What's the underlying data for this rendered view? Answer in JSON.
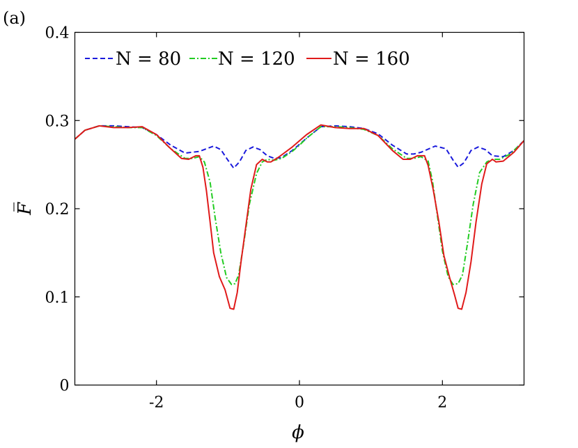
{
  "panel_label": "(a)",
  "chart_data": {
    "type": "line",
    "xlabel": "ϕ",
    "ylabel": "F̅",
    "xlim": [
      -3.14159,
      3.14159
    ],
    "ylim": [
      0,
      0.4
    ],
    "xticks": [
      -2,
      0,
      2
    ],
    "xtick_labels": [
      "-2",
      "0",
      "2"
    ],
    "yticks": [
      0,
      0.1,
      0.2,
      0.3,
      0.4
    ],
    "ytick_labels": [
      "0",
      "0.1",
      "0.2",
      "0.3",
      "0.4"
    ],
    "grid": false,
    "legend_position": "top-left",
    "series": [
      {
        "name": "N = 80",
        "color": "#1a1adc",
        "dash": "dashed",
        "x": [
          -3.14,
          -3.0,
          -2.8,
          -2.6,
          -2.4,
          -2.2,
          -2.0,
          -1.8,
          -1.6,
          -1.4,
          -1.3,
          -1.2,
          -1.1,
          -1.0,
          -0.92,
          -0.84,
          -0.75,
          -0.65,
          -0.55,
          -0.45,
          -0.35,
          -0.25,
          -0.1,
          0.0,
          0.1,
          0.3,
          0.5,
          0.7,
          0.9,
          1.1,
          1.3,
          1.5,
          1.6,
          1.7,
          1.9,
          2.05,
          2.15,
          2.22,
          2.3,
          2.4,
          2.5,
          2.6,
          2.7,
          2.85,
          3.0,
          3.14
        ],
        "y": [
          0.279,
          0.289,
          0.294,
          0.294,
          0.293,
          0.292,
          0.284,
          0.272,
          0.263,
          0.265,
          0.268,
          0.271,
          0.267,
          0.255,
          0.246,
          0.253,
          0.266,
          0.27,
          0.267,
          0.26,
          0.257,
          0.258,
          0.266,
          0.273,
          0.28,
          0.293,
          0.294,
          0.293,
          0.291,
          0.285,
          0.272,
          0.262,
          0.262,
          0.264,
          0.271,
          0.268,
          0.255,
          0.247,
          0.252,
          0.266,
          0.27,
          0.267,
          0.26,
          0.259,
          0.266,
          0.277
        ]
      },
      {
        "name": "N = 120",
        "color": "#22cc22",
        "dash": "dashdot",
        "x": [
          -3.14,
          -3.0,
          -2.8,
          -2.6,
          -2.4,
          -2.2,
          -2.0,
          -1.8,
          -1.6,
          -1.5,
          -1.4,
          -1.33,
          -1.25,
          -1.18,
          -1.1,
          -1.02,
          -0.95,
          -0.9,
          -0.85,
          -0.78,
          -0.7,
          -0.6,
          -0.52,
          -0.45,
          -0.35,
          -0.25,
          -0.1,
          0.0,
          0.1,
          0.3,
          0.5,
          0.7,
          0.9,
          1.1,
          1.3,
          1.5,
          1.6,
          1.7,
          1.8,
          1.86,
          1.93,
          2.0,
          2.08,
          2.15,
          2.22,
          2.28,
          2.35,
          2.43,
          2.52,
          2.62,
          2.7,
          2.8,
          2.95,
          3.14
        ],
        "y": [
          0.279,
          0.289,
          0.294,
          0.293,
          0.292,
          0.292,
          0.283,
          0.268,
          0.257,
          0.257,
          0.259,
          0.253,
          0.23,
          0.19,
          0.15,
          0.122,
          0.114,
          0.115,
          0.125,
          0.16,
          0.205,
          0.24,
          0.253,
          0.256,
          0.255,
          0.257,
          0.265,
          0.272,
          0.28,
          0.293,
          0.293,
          0.292,
          0.29,
          0.283,
          0.268,
          0.257,
          0.257,
          0.259,
          0.254,
          0.232,
          0.192,
          0.152,
          0.123,
          0.114,
          0.115,
          0.125,
          0.16,
          0.205,
          0.241,
          0.253,
          0.256,
          0.256,
          0.262,
          0.277
        ]
      },
      {
        "name": "N = 160",
        "color": "#e01a1a",
        "dash": "solid",
        "x": [
          -3.14,
          -3.0,
          -2.8,
          -2.6,
          -2.4,
          -2.2,
          -2.0,
          -1.8,
          -1.65,
          -1.55,
          -1.45,
          -1.4,
          -1.35,
          -1.3,
          -1.25,
          -1.2,
          -1.12,
          -1.04,
          -0.97,
          -0.92,
          -0.87,
          -0.82,
          -0.75,
          -0.68,
          -0.6,
          -0.52,
          -0.45,
          -0.4,
          -0.3,
          -0.2,
          -0.1,
          0.0,
          0.1,
          0.3,
          0.5,
          0.7,
          0.9,
          1.1,
          1.3,
          1.45,
          1.55,
          1.65,
          1.75,
          1.8,
          1.87,
          1.95,
          2.02,
          2.1,
          2.17,
          2.22,
          2.27,
          2.33,
          2.4,
          2.47,
          2.55,
          2.62,
          2.7,
          2.75,
          2.85,
          3.0,
          3.14
        ],
        "y": [
          0.279,
          0.289,
          0.294,
          0.292,
          0.292,
          0.293,
          0.284,
          0.268,
          0.257,
          0.256,
          0.26,
          0.26,
          0.247,
          0.22,
          0.185,
          0.15,
          0.123,
          0.108,
          0.087,
          0.086,
          0.105,
          0.138,
          0.18,
          0.222,
          0.25,
          0.256,
          0.253,
          0.253,
          0.258,
          0.264,
          0.27,
          0.277,
          0.284,
          0.295,
          0.292,
          0.291,
          0.291,
          0.283,
          0.266,
          0.256,
          0.256,
          0.26,
          0.26,
          0.249,
          0.222,
          0.185,
          0.147,
          0.122,
          0.102,
          0.087,
          0.086,
          0.105,
          0.14,
          0.185,
          0.228,
          0.251,
          0.256,
          0.253,
          0.254,
          0.264,
          0.277
        ]
      }
    ]
  }
}
